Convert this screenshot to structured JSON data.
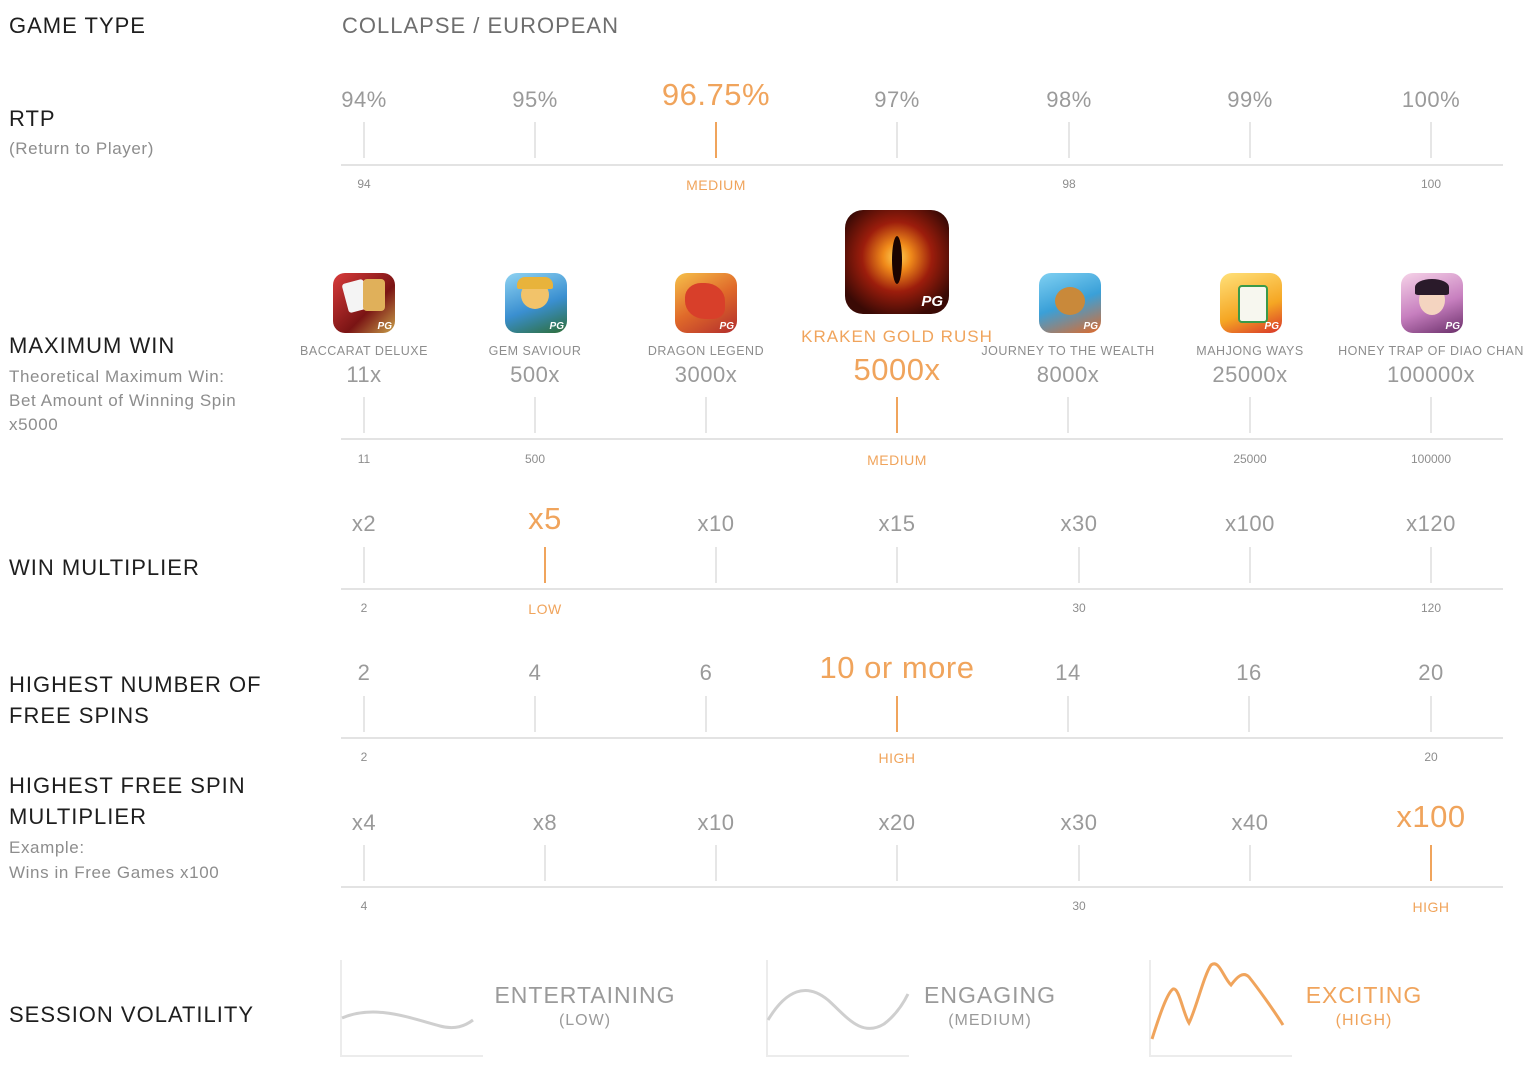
{
  "colors": {
    "accent": "#f0a45c",
    "muted": "#9a9a9a",
    "label": "#1e1e1e",
    "line": "#e3e3e3"
  },
  "game_type": {
    "title": "GAME TYPE",
    "value": "COLLAPSE / EUROPEAN"
  },
  "rtp": {
    "title": "RTP",
    "subtitle": "(Return to Player)",
    "values": [
      "94%",
      "95%",
      "96.75%",
      "97%",
      "98%",
      "99%",
      "100%"
    ],
    "highlight_index": 2,
    "marks": [
      "94",
      "MEDIUM",
      "98",
      "100"
    ]
  },
  "max_win": {
    "title": "MAXIMUM WIN",
    "subtitle_lines": [
      "Theoretical Maximum Win:",
      "Bet Amount of Winning Spin",
      "x5000"
    ],
    "games": [
      {
        "name": "BACCARAT DELUXE",
        "value": "11x",
        "icon": "baccarat-deluxe-icon"
      },
      {
        "name": "GEM SAVIOUR",
        "value": "500x",
        "icon": "gem-saviour-icon"
      },
      {
        "name": "DRAGON LEGEND",
        "value": "3000x",
        "icon": "dragon-legend-icon"
      },
      {
        "name": "KRAKEN GOLD RUSH",
        "value": "5000x",
        "icon": "kraken-gold-rush-icon"
      },
      {
        "name": "JOURNEY TO THE WEALTH",
        "value": "8000x",
        "icon": "journey-to-the-wealth-icon"
      },
      {
        "name": "MAHJONG WAYS",
        "value": "25000x",
        "icon": "mahjong-ways-icon"
      },
      {
        "name": "HONEY TRAP OF DIAO CHAN",
        "value": "100000x",
        "icon": "honey-trap-of-diao-chan-icon"
      }
    ],
    "highlight_index": 3,
    "badge": "PG",
    "marks": [
      "11",
      "500",
      "MEDIUM",
      "25000",
      "100000"
    ]
  },
  "win_multiplier": {
    "title": "WIN MULTIPLIER",
    "values": [
      "x2",
      "x5",
      "x10",
      "x15",
      "x30",
      "x100",
      "x120"
    ],
    "highlight_index": 1,
    "marks": [
      "2",
      "LOW",
      "30",
      "120"
    ]
  },
  "free_spins": {
    "title_lines": [
      "HIGHEST NUMBER OF",
      "FREE SPINS"
    ],
    "values": [
      "2",
      "4",
      "6",
      "10 or more",
      "14",
      "16",
      "20"
    ],
    "highlight_index": 3,
    "marks": [
      "2",
      "HIGH",
      "20"
    ]
  },
  "free_spin_multiplier": {
    "title_lines": [
      "HIGHEST FREE SPIN",
      "MULTIPLIER"
    ],
    "subtitle_lines": [
      "Example:",
      "Wins in Free Games x100"
    ],
    "values": [
      "x4",
      "x8",
      "x10",
      "x20",
      "x30",
      "x40",
      "x100"
    ],
    "highlight_index": 6,
    "marks": [
      "4",
      "30",
      "HIGH"
    ]
  },
  "session_volatility": {
    "title": "SESSION VOLATILITY",
    "levels": [
      {
        "name": "ENTERTAINING",
        "sub": "(LOW)"
      },
      {
        "name": "ENGAGING",
        "sub": "(MEDIUM)"
      },
      {
        "name": "EXCITING",
        "sub": "(HIGH)"
      }
    ],
    "highlight_index": 2
  }
}
